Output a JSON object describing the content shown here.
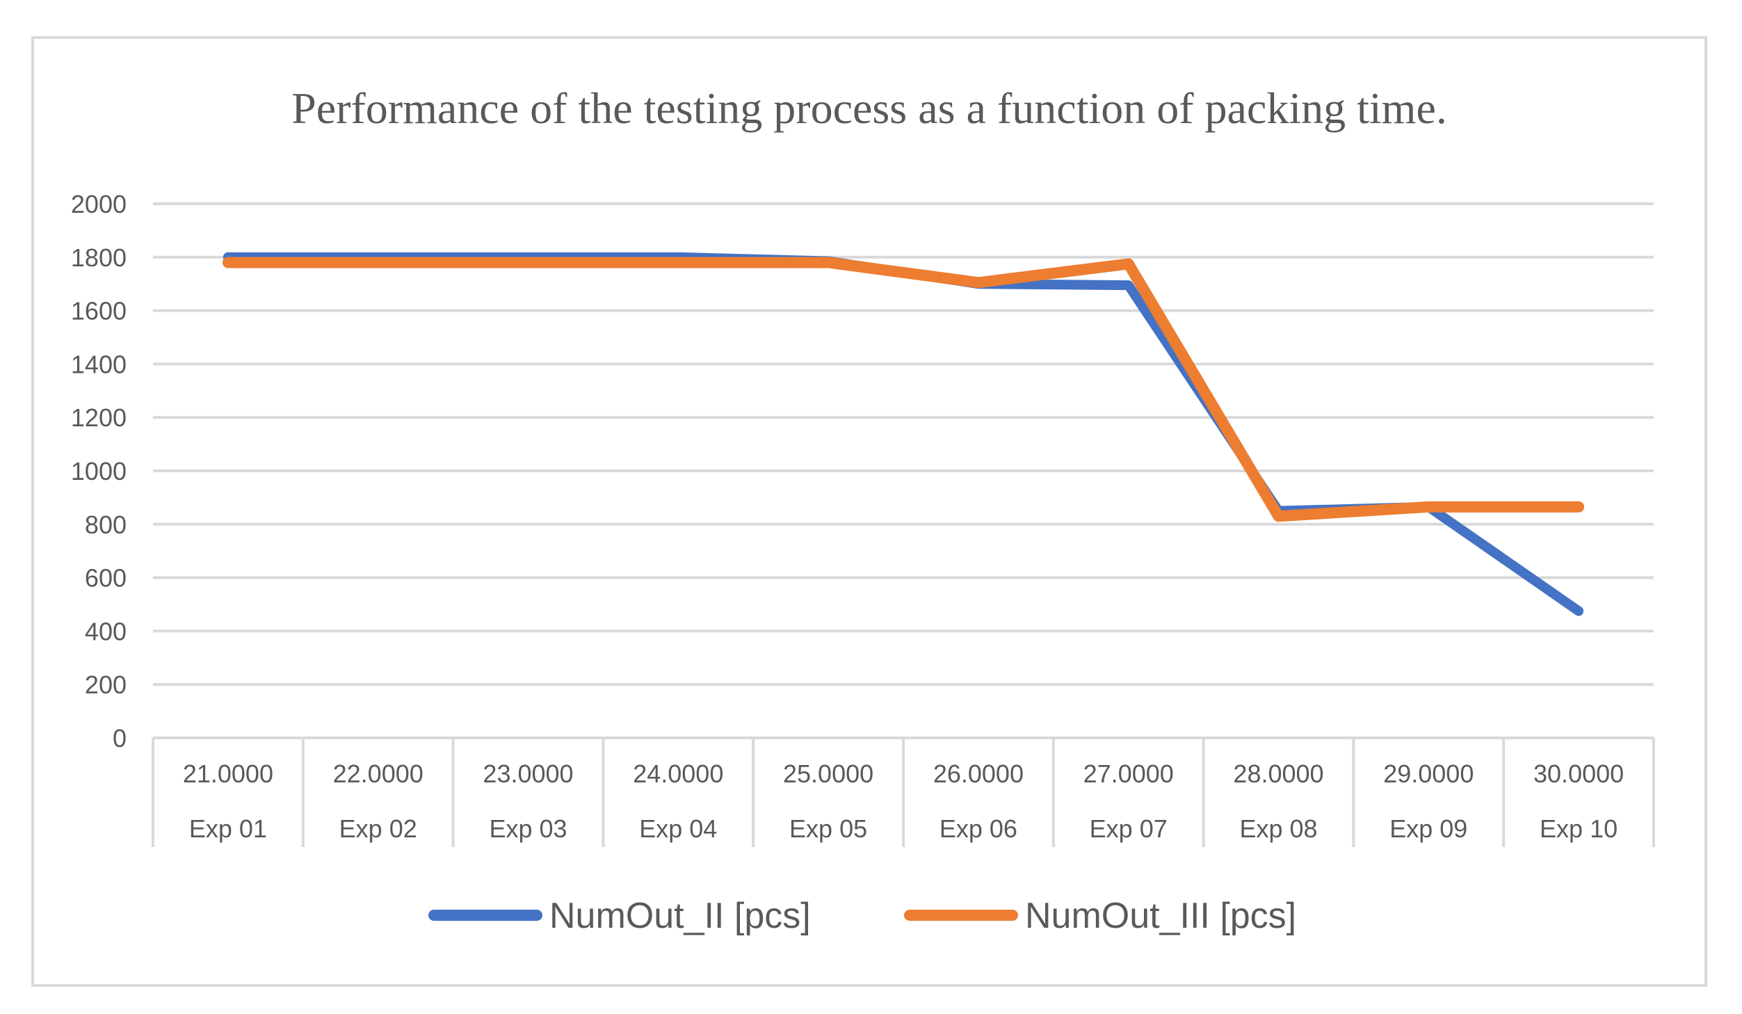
{
  "chart_data": {
    "type": "line",
    "title": "Performance of the testing process as a function of packing time.",
    "xlabel": "",
    "ylabel": "",
    "ylim": [
      0,
      2000
    ],
    "yticks": [
      0,
      200,
      400,
      600,
      800,
      1000,
      1200,
      1400,
      1600,
      1800,
      2000
    ],
    "grid": true,
    "legend_position": "bottom",
    "categories": [
      {
        "time": "21.0000",
        "exp": "Exp 01"
      },
      {
        "time": "22.0000",
        "exp": "Exp 02"
      },
      {
        "time": "23.0000",
        "exp": "Exp 03"
      },
      {
        "time": "24.0000",
        "exp": "Exp 04"
      },
      {
        "time": "25.0000",
        "exp": "Exp 05"
      },
      {
        "time": "26.0000",
        "exp": "Exp 06"
      },
      {
        "time": "27.0000",
        "exp": "Exp 07"
      },
      {
        "time": "28.0000",
        "exp": "Exp 08"
      },
      {
        "time": "29.0000",
        "exp": "Exp 09"
      },
      {
        "time": "30.0000",
        "exp": "Exp 10"
      }
    ],
    "series": [
      {
        "name": "NumOut_II [pcs]",
        "color": "#4472c4",
        "values": [
          1800,
          1800,
          1800,
          1800,
          1785,
          1700,
          1695,
          850,
          865,
          475
        ]
      },
      {
        "name": "NumOut_III [pcs]",
        "color": "#ed7d31",
        "values": [
          1780,
          1780,
          1780,
          1780,
          1780,
          1705,
          1775,
          830,
          865,
          865
        ]
      }
    ]
  }
}
